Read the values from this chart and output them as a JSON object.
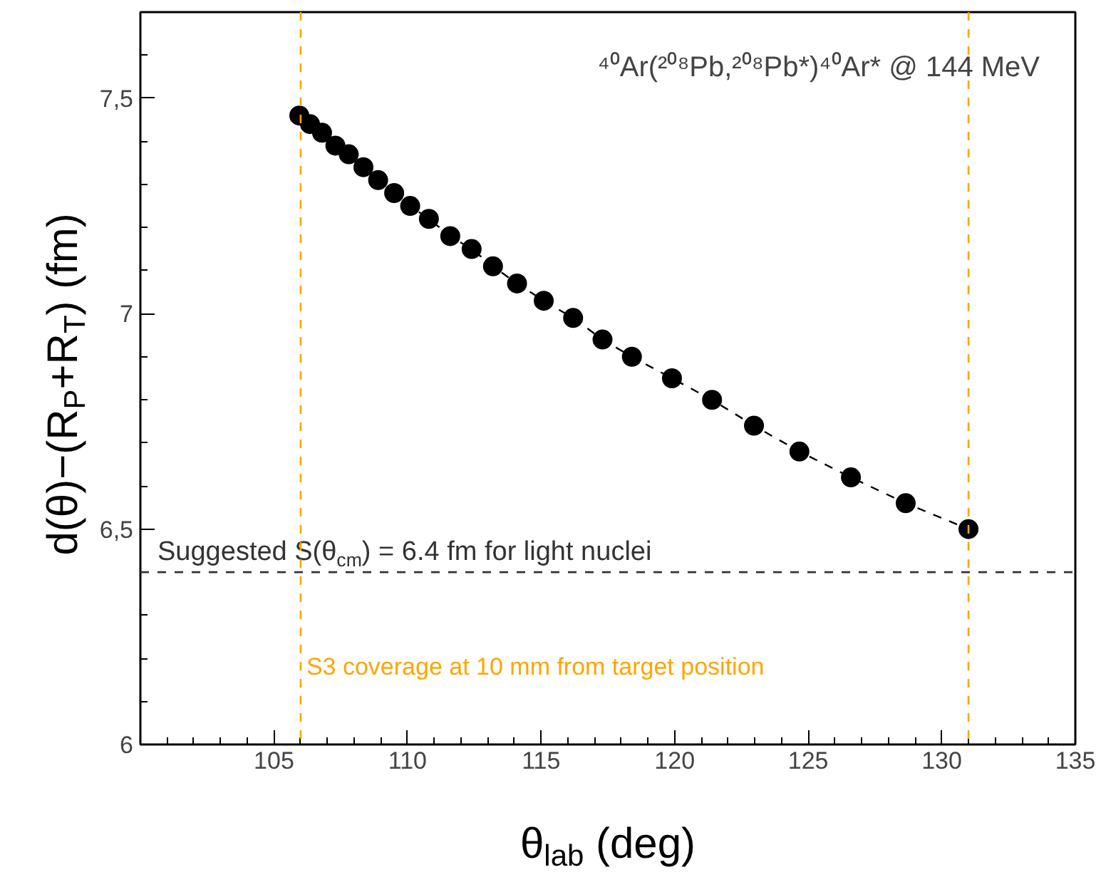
{
  "chart_data": {
    "type": "line",
    "title": "⁴⁰Ar(²⁰⁸Pb,²⁰⁸Pb*)⁴⁰Ar* @ 144 MeV",
    "xlabel": "θ$_{lab}$ (deg)",
    "ylabel": "d(θ)−(R$_{P}$+R$_{T}$)  (fm)",
    "x": [
      105.95,
      106.35,
      106.8,
      107.3,
      107.8,
      108.35,
      108.9,
      109.5,
      110.1,
      110.8,
      111.6,
      112.4,
      113.2,
      114.1,
      115.1,
      116.2,
      117.3,
      118.4,
      119.9,
      121.4,
      122.97,
      124.67,
      126.6,
      128.65,
      131.0
    ],
    "series": [
      {
        "color": "#000000",
        "values": [
          7.46,
          7.44,
          7.42,
          7.39,
          7.37,
          7.34,
          7.31,
          7.28,
          7.25,
          7.22,
          7.18,
          7.15,
          7.11,
          7.07,
          7.03,
          6.99,
          6.94,
          6.9,
          6.85,
          6.8,
          6.74,
          6.68,
          6.62,
          6.56,
          6.5
        ]
      }
    ],
    "marker": "circle",
    "line_style": "dashed",
    "grid": false,
    "xlim": [
      100,
      135
    ],
    "xticks": [
      105,
      110,
      115,
      120,
      125,
      130,
      135
    ],
    "ylim": [
      6,
      7.7
    ],
    "yticks": [
      6,
      {
        "value": 6.5,
        "label": "6,5"
      },
      7,
      {
        "value": 7.5,
        "label": "7,5"
      }
    ],
    "ref_lines": [
      {
        "axis": "y",
        "value": 6.4,
        "label": "Suggested S(θ$_{cm}$) = 6.4 fm for light nuclei",
        "color": "#333333",
        "line_style": "dashed"
      },
      {
        "axis": "x",
        "value": 106,
        "label": "S3 coverage at 10 mm from target position",
        "color": "#ffa500",
        "line_style": "dashed"
      },
      {
        "axis": "x",
        "value": 131,
        "color": "#ffa500",
        "line_style": "dashed"
      }
    ]
  }
}
